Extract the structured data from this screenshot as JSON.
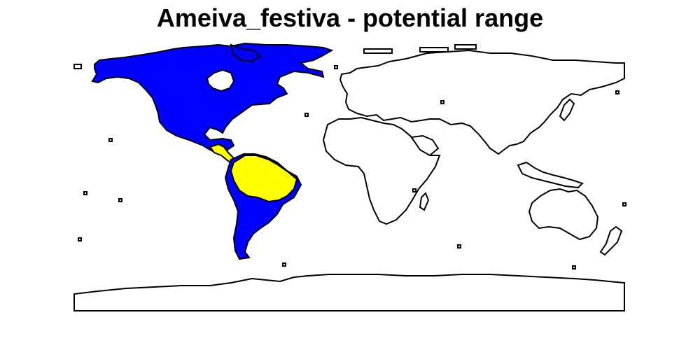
{
  "title": "Ameiva_festiva - potential range",
  "legend_colors": {
    "range": "#0000ff",
    "present": "#ffff00",
    "land": "#ffffff",
    "outline": "#000000"
  }
}
